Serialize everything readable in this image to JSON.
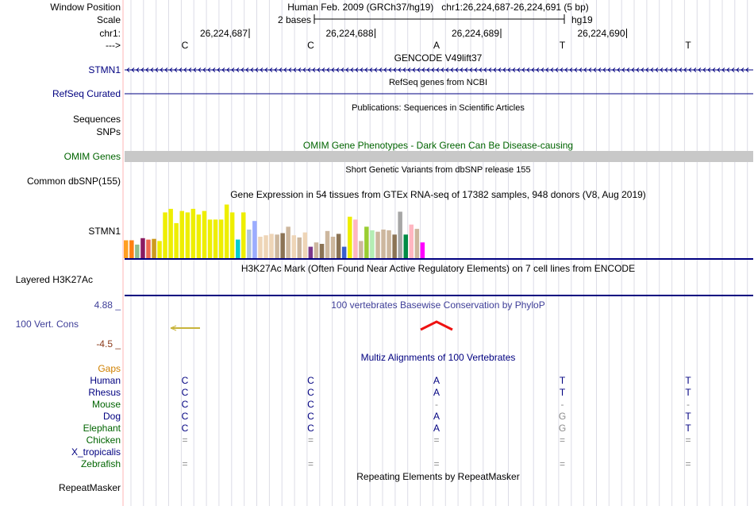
{
  "colors": {
    "navy": "#000080",
    "dark_green": "#006400",
    "omim_bar": "#c8c8c8",
    "phylop": "#3e3e98",
    "neg": "#8b3a1a",
    "gaps": "#d08000",
    "green_species": "#006400",
    "divider": "#ffb4b4",
    "grid": "#dcdce6"
  },
  "ruler": {
    "window_label": "Window Position",
    "window_value": "Human Feb. 2009 (GRCh37/hg19)   chr1:26,224,687-26,224,691 (5 bp)",
    "scale_label": "Scale",
    "scale_value": "2 bases",
    "scale_assembly": "hg19",
    "chrom_label": "chr1:",
    "positions": [
      "26,224,687",
      "26,224,688",
      "26,224,689",
      "26,224,690"
    ],
    "strand_label": "--->",
    "bases": [
      "C",
      "C",
      "A",
      "T",
      "T"
    ]
  },
  "tracks": [
    {
      "key": "gencode",
      "label": "STMN1",
      "title": "GENCODE V49lift37"
    },
    {
      "key": "refseq",
      "label": "RefSeq Curated",
      "title": "RefSeq genes from NCBI"
    },
    {
      "key": "pubs",
      "label": "Sequences",
      "title": "Publications: Sequences in Scientific Articles"
    },
    {
      "key": "pubsnp",
      "label": "SNPs",
      "title": ""
    },
    {
      "key": "omim",
      "label": "OMIM Genes",
      "title": "OMIM Gene Phenotypes - Dark Green Can Be Disease-causing"
    },
    {
      "key": "dbsnp",
      "label": "Common dbSNP(155)",
      "title": "Short Genetic Variants from dbSNP release 155"
    },
    {
      "key": "gtex",
      "label": "STMN1",
      "title": "Gene Expression in 54 tissues from GTEx RNA-seq of 17382 samples, 948 donors (V8, Aug 2019)"
    },
    {
      "key": "h3k27",
      "label": "Layered H3K27Ac",
      "title": "H3K27Ac Mark (Often Found Near Active Regulatory Elements) on 7 cell lines from ENCODE"
    },
    {
      "key": "cons",
      "label": "100 Vert. Cons",
      "title": "100 vertebrates Basewise Conservation by PhyloP",
      "max": "4.88 _",
      "min": "-4.5 _"
    },
    {
      "key": "multiz",
      "label": "",
      "title": "Multiz Alignments of 100 Vertebrates"
    },
    {
      "key": "rmsk",
      "label": "RepeatMasker",
      "title": "Repeating Elements by RepeatMasker"
    }
  ],
  "gtex_bars": [
    {
      "value": 0.25,
      "color": "#ff9f22"
    },
    {
      "value": 0.25,
      "color": "#ff7f11"
    },
    {
      "value": 0.19,
      "color": "#8fbc8f"
    },
    {
      "value": 0.28,
      "color": "#8b1c62"
    },
    {
      "value": 0.26,
      "color": "#ee6a50"
    },
    {
      "value": 0.27,
      "color": "#cd9b1d"
    },
    {
      "value": 0.24,
      "color": "#eeee00"
    },
    {
      "value": 0.64,
      "color": "#eeee00"
    },
    {
      "value": 0.69,
      "color": "#eeee00"
    },
    {
      "value": 0.49,
      "color": "#eeee00"
    },
    {
      "value": 0.66,
      "color": "#eeee00"
    },
    {
      "value": 0.64,
      "color": "#eeee00"
    },
    {
      "value": 0.69,
      "color": "#eeee00"
    },
    {
      "value": 0.61,
      "color": "#eeee00"
    },
    {
      "value": 0.66,
      "color": "#eeee00"
    },
    {
      "value": 0.54,
      "color": "#eeee00"
    },
    {
      "value": 0.54,
      "color": "#eeee00"
    },
    {
      "value": 0.54,
      "color": "#eeee00"
    },
    {
      "value": 0.75,
      "color": "#eeee00"
    },
    {
      "value": 0.64,
      "color": "#eeee00"
    },
    {
      "value": 0.26,
      "color": "#00ced1"
    },
    {
      "value": 0.64,
      "color": "#eeee00"
    },
    {
      "value": 0.4,
      "color": "#b0c4de"
    },
    {
      "value": 0.52,
      "color": "#9bacff"
    },
    {
      "value": 0.3,
      "color": "#eed5b7"
    },
    {
      "value": 0.32,
      "color": "#eed5b7"
    },
    {
      "value": 0.34,
      "color": "#eed5b7"
    },
    {
      "value": 0.33,
      "color": "#cdb79e"
    },
    {
      "value": 0.35,
      "color": "#8b7355"
    },
    {
      "value": 0.44,
      "color": "#cdb79e"
    },
    {
      "value": 0.32,
      "color": "#eed5b7"
    },
    {
      "value": 0.29,
      "color": "#cdb79e"
    },
    {
      "value": 0.36,
      "color": "#eed5b7"
    },
    {
      "value": 0.16,
      "color": "#7a378b"
    },
    {
      "value": 0.22,
      "color": "#cdb79e"
    },
    {
      "value": 0.2,
      "color": "#8b7355"
    },
    {
      "value": 0.38,
      "color": "#cdb79e"
    },
    {
      "value": 0.3,
      "color": "#cdb79e"
    },
    {
      "value": 0.34,
      "color": "#8b7355"
    },
    {
      "value": 0.16,
      "color": "#3a5fcd"
    },
    {
      "value": 0.58,
      "color": "#eeee00"
    },
    {
      "value": 0.54,
      "color": "#ffb6c1"
    },
    {
      "value": 0.24,
      "color": "#cdb79e"
    },
    {
      "value": 0.44,
      "color": "#9acd32"
    },
    {
      "value": 0.39,
      "color": "#b4eeb4"
    },
    {
      "value": 0.37,
      "color": "#cdb79e"
    },
    {
      "value": 0.4,
      "color": "#cdb79e"
    },
    {
      "value": 0.39,
      "color": "#cdb79e"
    },
    {
      "value": 0.33,
      "color": "#8b7355"
    },
    {
      "value": 0.65,
      "color": "#a6a6a6"
    },
    {
      "value": 0.33,
      "color": "#008b45"
    },
    {
      "value": 0.47,
      "color": "#ffb6c1"
    },
    {
      "value": 0.41,
      "color": "#cdb79e"
    },
    {
      "value": 0.22,
      "color": "#ff00ff"
    }
  ],
  "species": [
    {
      "name": "Human",
      "color": "#000080",
      "bases": [
        "C",
        "C",
        "A",
        "T",
        "T"
      ]
    },
    {
      "name": "Rhesus",
      "color": "#000080",
      "bases": [
        "C",
        "C",
        "A",
        "T",
        "T"
      ]
    },
    {
      "name": "Mouse",
      "color": "#006400",
      "bases": [
        "C",
        "C",
        "-",
        "-",
        "-"
      ]
    },
    {
      "name": "Dog",
      "color": "#000080",
      "bases": [
        "C",
        "C",
        "A",
        "G",
        "T"
      ]
    },
    {
      "name": "Elephant",
      "color": "#006400",
      "bases": [
        "C",
        "C",
        "A",
        "G",
        "T"
      ]
    },
    {
      "name": "Chicken",
      "color": "#006400",
      "bases": [
        "=",
        "=",
        "=",
        "=",
        "="
      ]
    },
    {
      "name": "X_tropicalis",
      "color": "#000080",
      "bases": [
        "",
        "",
        "",
        "",
        ""
      ]
    },
    {
      "name": "Zebrafish",
      "color": "#006400",
      "bases": [
        "=",
        "=",
        "=",
        "=",
        "="
      ]
    }
  ],
  "gaps_label": "Gaps"
}
